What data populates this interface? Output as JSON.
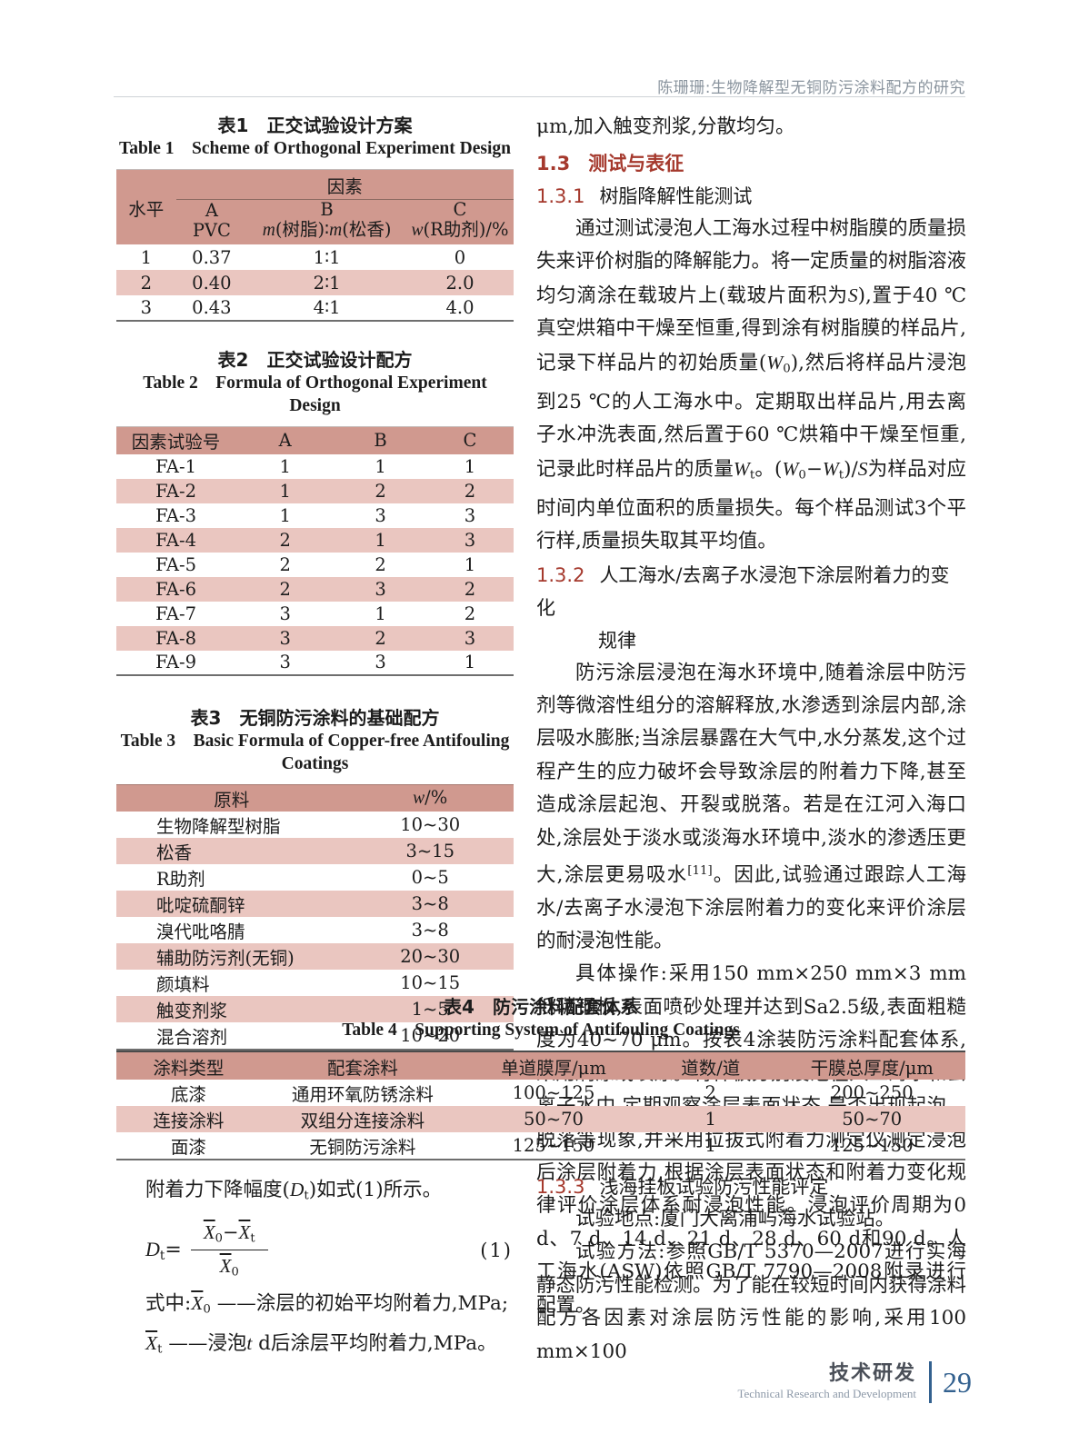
{
  "colors": {
    "table_header_pink": "#d0998f",
    "table_row_pink": "#eac6c0",
    "section_red": "#a5392d",
    "footer_blue": "#33618f"
  },
  "page_header": {
    "title": "陈珊珊:生物降解型无铜防污涂料配方的研究"
  },
  "table1": {
    "title_cn": "表1　正交试验设计方案",
    "title_en": "Table 1　Scheme of Orthogonal Experiment Design",
    "head": {
      "level": "水平",
      "factor": "因素",
      "a1": "A",
      "a2": "PVC",
      "b1": "B",
      "c1": "C"
    },
    "b2_parts": [
      {
        "t": "m",
        "s": "it"
      },
      {
        "t": "(树脂)∶"
      },
      {
        "t": "m",
        "s": "it"
      },
      {
        "t": "(松香)"
      }
    ],
    "c2_parts": [
      {
        "t": "w",
        "s": "it"
      },
      {
        "t": "(R助剂)/%"
      }
    ],
    "rows": [
      [
        "1",
        "0.37",
        "1∶1",
        "0"
      ],
      [
        "2",
        "0.40",
        "2∶1",
        "2.0"
      ],
      [
        "3",
        "0.43",
        "4∶1",
        "4.0"
      ]
    ]
  },
  "table2": {
    "title_cn": "表2　正交试验设计配方",
    "title_en": "Table 2　Formula of Orthogonal Experiment Design",
    "headers": [
      "因素试验号",
      "A",
      "B",
      "C"
    ],
    "rows": [
      [
        "FA-1",
        "1",
        "1",
        "1"
      ],
      [
        "FA-2",
        "1",
        "2",
        "2"
      ],
      [
        "FA-3",
        "1",
        "3",
        "3"
      ],
      [
        "FA-4",
        "2",
        "1",
        "3"
      ],
      [
        "FA-5",
        "2",
        "2",
        "1"
      ],
      [
        "FA-6",
        "2",
        "3",
        "2"
      ],
      [
        "FA-7",
        "3",
        "1",
        "2"
      ],
      [
        "FA-8",
        "3",
        "2",
        "3"
      ],
      [
        "FA-9",
        "3",
        "3",
        "1"
      ]
    ]
  },
  "table3": {
    "title_cn": "表3　无铜防污涂料的基础配方",
    "title_en_line1": "Table 3　Basic Formula of Copper-free Antifouling",
    "title_en_line2": "Coatings",
    "head_material": "原料",
    "head_w_parts": [
      {
        "t": "w",
        "s": "it"
      },
      {
        "t": "/%"
      }
    ],
    "rows": [
      [
        "生物降解型树脂",
        "10~30"
      ],
      [
        "松香",
        "3~15"
      ],
      [
        "R助剂",
        "0~5"
      ],
      [
        "吡啶硫酮锌",
        "3~8"
      ],
      [
        "溴代吡咯腈",
        "3~8"
      ],
      [
        "辅助防污剂(无铜)",
        "20~30"
      ],
      [
        "颜填料",
        "10~15"
      ],
      [
        "触变剂浆",
        "1~5"
      ],
      [
        "混合溶剂",
        "10~20"
      ]
    ]
  },
  "table4": {
    "title_cn": "表4　防污涂料配套体系",
    "title_en": "Table 4　Supporting System of Antifouling Coatings",
    "headers": [
      "涂料类型",
      "配套涂料",
      "单道膜厚/μm",
      "道数/道",
      "干膜总厚度/μm"
    ],
    "rows": [
      [
        "底漆",
        "通用环氧防锈涂料",
        "100~125",
        "2",
        "200~250"
      ],
      [
        "连接涂料",
        "双组分连接涂料",
        "50~70",
        "1",
        "50~70"
      ],
      [
        "面漆",
        "无铜防污涂料",
        "125~150",
        "1",
        "125~150"
      ]
    ]
  },
  "right_column": {
    "lead": "μm,加入触变剂浆,分散均匀。",
    "sec13_num": "1.3",
    "sec13_title": "测试与表征",
    "sec131_num": "1.3.1",
    "sec131_title": "树脂降解性能测试",
    "p131_parts": [
      {
        "t": "通过测试浸泡人工海水过程中树脂膜的质量损失来评价树脂的降解能力。将一定质量的树脂溶液均匀滴涂在载玻片上(载玻片面积为"
      },
      {
        "t": "S",
        "s": "it"
      },
      {
        "t": "),置于40 ℃真空烘箱中干燥至恒重,得到涂有树脂膜的样品片,记录下样品片的初始质量("
      },
      {
        "t": "W",
        "s": "it"
      },
      {
        "t": "0",
        "s": "sub"
      },
      {
        "t": "),然后将样品片浸泡到25 ℃的人工海水中。定期取出样品片,用去离子水冲洗表面,然后置于60 ℃烘箱中干燥至恒重,记录此时样品片的质量"
      },
      {
        "t": "W",
        "s": "it"
      },
      {
        "t": "t",
        "s": "sub"
      },
      {
        "t": "。("
      },
      {
        "t": "W",
        "s": "it"
      },
      {
        "t": "0",
        "s": "sub"
      },
      {
        "t": "−"
      },
      {
        "t": "W",
        "s": "it"
      },
      {
        "t": "t",
        "s": "sub"
      },
      {
        "t": ")/"
      },
      {
        "t": "S",
        "s": "it"
      },
      {
        "t": "为样品对应时间内单位面积的质量损失。每个样品测试3个平行样,质量损失取其平均值。"
      }
    ],
    "sec132_num": "1.3.2",
    "sec132_title_line1": "人工海水/去离子水浸泡下涂层附着力的变化",
    "sec132_title_line2": "规律",
    "p132a_parts": [
      {
        "t": "防污涂层浸泡在海水环境中,随着涂层中防污剂等微溶性组分的溶解释放,水渗透到涂层内部,涂层吸水膨胀;当涂层暴露在大气中,水分蒸发,这个过程产生的应力破坏会导致涂层的附着力下降,甚至造成涂层起泡、开裂或脱落。若是在江河入海口处,涂层处于淡水或淡海水环境中,淡水的渗透压更大,涂层更易吸水"
      },
      {
        "t": "[11]",
        "s": "sup"
      },
      {
        "t": "。因此,试验通过跟踪人工海水/去离子水浸泡下涂层附着力的变化来评价涂层的耐浸泡性能。"
      }
    ],
    "p132b": "具体操作:采用150 mm×250 mm×3 mm低碳钢板,表面喷砂处理并达到Sa2.5级,表面粗糙度为40~70 μm。按表4涂装防污涂料配套体系,采用刷涂或喷涂。将样板分别浸泡在人工海水和去离子水中,定期观察涂层表面状态,是否出现起泡、脱落等现象,并采用拉拔式附着力测定仪测定浸泡后涂层附着力,根据涂层表面状态和附着力变化规律评价涂层体系耐浸泡性能。浸泡评价周期为0 d、7 d、14 d、21 d、28 d、60 d和90 d。人工海水(ASW)依照GB/T 7790—2008附录进行配置。"
  },
  "equation": {
    "intro_parts": [
      {
        "t": "附着力下降幅度("
      },
      {
        "t": "D",
        "s": "it"
      },
      {
        "t": "t",
        "s": "sub"
      },
      {
        "t": ")如式(1)所示。"
      }
    ],
    "lhs_parts": [
      {
        "t": "D",
        "s": "it"
      },
      {
        "t": "t",
        "s": "sub"
      },
      {
        "t": "="
      }
    ],
    "num_parts": [
      {
        "t": "X",
        "s": "bar"
      },
      {
        "t": "0",
        "s": "sub"
      },
      {
        "t": "−",
        "s": "op"
      },
      {
        "t": "X",
        "s": "bar"
      },
      {
        "t": "t",
        "s": "sub"
      }
    ],
    "den_parts": [
      {
        "t": "X",
        "s": "bar"
      },
      {
        "t": "0",
        "s": "sub"
      }
    ],
    "number": "(1)",
    "legend1_parts": [
      {
        "t": "式中:"
      },
      {
        "t": "X",
        "s": "bar"
      },
      {
        "t": "0",
        "s": "sub"
      },
      {
        "t": " ——涂层的初始平均附着力,MPa;"
      }
    ],
    "legend2_parts": [
      {
        "t": "X",
        "s": "bar"
      },
      {
        "t": "t",
        "s": "sub"
      },
      {
        "t": " ——浸泡"
      },
      {
        "t": "t",
        "s": "it"
      },
      {
        "t": " d后涂层平均附着力,MPa。"
      }
    ]
  },
  "sec133": {
    "num": "1.3.3",
    "title": "浅海挂板试验防污性能评定",
    "p1": "试验地点:厦门大离浦屿海水试验站。",
    "p2": "试验方法:参照GB/T 5370—2007进行实海静态防污性能检测。为了能在较短时间内获得涂料配方各因素对涂层防污性能的影响,采用100 mm×100"
  },
  "footer": {
    "cn": "技术研发",
    "en": "Technical Research and Development",
    "page_number": "29"
  }
}
